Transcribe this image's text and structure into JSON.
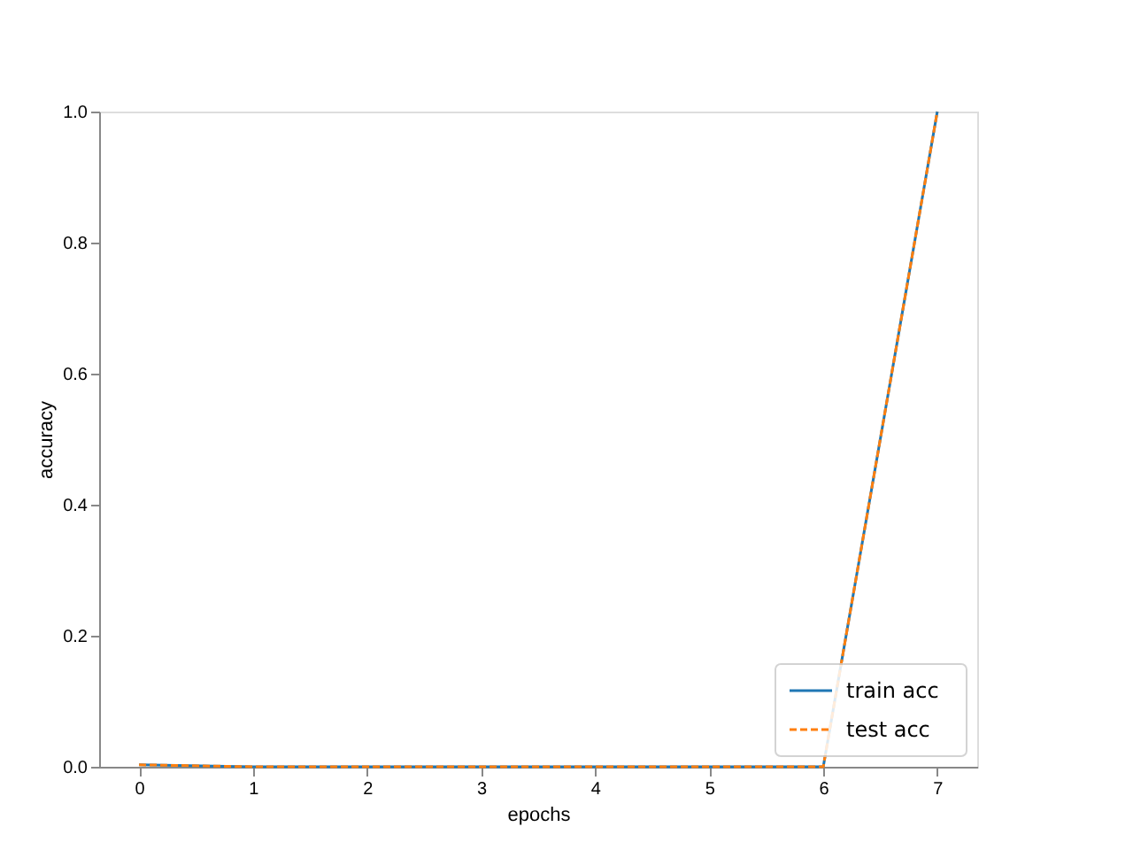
{
  "chart_data": {
    "type": "line",
    "xlabel": "epochs",
    "ylabel": "accuracy",
    "x": [
      0,
      1,
      2,
      3,
      4,
      5,
      6,
      7
    ],
    "series": [
      {
        "name": "train acc",
        "color": "#1f77b4",
        "line_style": "solid",
        "values": [
          0.003,
          0,
          0,
          0,
          0,
          0,
          0,
          1
        ]
      },
      {
        "name": "test acc",
        "color": "#ff7f0e",
        "line_style": "dashed",
        "values": [
          0.003,
          0,
          0,
          0,
          0,
          0,
          0,
          1
        ]
      }
    ],
    "xlim": [
      -0.35,
      7.35
    ],
    "ylim": [
      0,
      1
    ],
    "xticks": [
      0,
      1,
      2,
      3,
      4,
      5,
      6,
      7
    ],
    "yticks": [
      {
        "value": 0,
        "label": "0.0"
      },
      0.2,
      0.4,
      0.6,
      0.8,
      {
        "value": 1,
        "label": "1.0"
      }
    ],
    "grid": false,
    "legend": "bottom right",
    "marker": "none"
  }
}
